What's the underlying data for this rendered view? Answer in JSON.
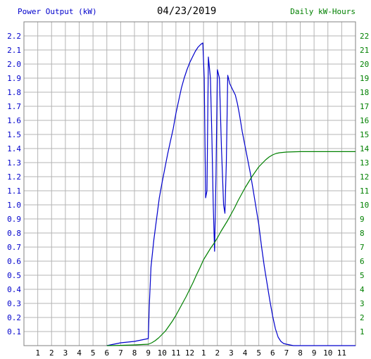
{
  "chart_data": {
    "type": "line",
    "title": "04/23/2019",
    "left_axis_label": "Power Output (kW)",
    "right_axis_label": "Daily kW-Hours",
    "x_tick_labels": [
      "1",
      "2",
      "3",
      "4",
      "5",
      "6",
      "7",
      "8",
      "9",
      "10",
      "11",
      "12",
      "1",
      "2",
      "3",
      "4",
      "5",
      "6",
      "7",
      "8",
      "9",
      "10",
      "11"
    ],
    "xlim": [
      0,
      24
    ],
    "left_ylim": [
      0,
      2.3
    ],
    "left_ticks": [
      "0.1",
      "0.2",
      "0.3",
      "0.4",
      "0.5",
      "0.6",
      "0.7",
      "0.8",
      "0.9",
      "1.0",
      "1.1",
      "1.2",
      "1.3",
      "1.4",
      "1.5",
      "1.6",
      "1.7",
      "1.8",
      "1.9",
      "2.0",
      "2.1",
      "2.2"
    ],
    "right_ylim": [
      0,
      23
    ],
    "right_ticks": [
      "1",
      "2",
      "3",
      "4",
      "5",
      "6",
      "7",
      "8",
      "9",
      "10",
      "11",
      "12",
      "13",
      "14",
      "15",
      "16",
      "17",
      "18",
      "19",
      "20",
      "21",
      "22"
    ],
    "grid": true,
    "colors": {
      "power": "#0000cc",
      "energy": "#008000",
      "grid": "#b4b4b4"
    },
    "series": [
      {
        "axis": "left",
        "points": [
          [
            6.0,
            0
          ],
          [
            6.5,
            0.01
          ],
          [
            7.0,
            0.02
          ],
          [
            7.5,
            0.025
          ],
          [
            8.0,
            0.03
          ],
          [
            8.5,
            0.04
          ],
          [
            9.0,
            0.05
          ],
          [
            9.08,
            0.3
          ],
          [
            9.2,
            0.56
          ],
          [
            9.4,
            0.75
          ],
          [
            9.6,
            0.9
          ],
          [
            9.8,
            1.05
          ],
          [
            10.0,
            1.16
          ],
          [
            10.2,
            1.26
          ],
          [
            10.4,
            1.36
          ],
          [
            10.6,
            1.45
          ],
          [
            10.8,
            1.54
          ],
          [
            11.0,
            1.65
          ],
          [
            11.2,
            1.74
          ],
          [
            11.4,
            1.83
          ],
          [
            11.6,
            1.9
          ],
          [
            11.8,
            1.96
          ],
          [
            12.0,
            2.01
          ],
          [
            12.2,
            2.05
          ],
          [
            12.4,
            2.09
          ],
          [
            12.6,
            2.12
          ],
          [
            12.8,
            2.14
          ],
          [
            12.95,
            2.15
          ],
          [
            13.05,
            1.9
          ],
          [
            13.15,
            1.05
          ],
          [
            13.25,
            1.1
          ],
          [
            13.35,
            2.05
          ],
          [
            13.5,
            1.9
          ],
          [
            13.6,
            1.5
          ],
          [
            13.7,
            1.0
          ],
          [
            13.8,
            0.67
          ],
          [
            13.9,
            1.2
          ],
          [
            14.0,
            1.96
          ],
          [
            14.15,
            1.9
          ],
          [
            14.3,
            1.4
          ],
          [
            14.45,
            1.0
          ],
          [
            14.55,
            0.94
          ],
          [
            14.65,
            1.3
          ],
          [
            14.75,
            1.92
          ],
          [
            14.9,
            1.86
          ],
          [
            15.1,
            1.82
          ],
          [
            15.3,
            1.78
          ],
          [
            15.45,
            1.72
          ],
          [
            15.6,
            1.64
          ],
          [
            15.8,
            1.52
          ],
          [
            16.0,
            1.42
          ],
          [
            16.2,
            1.32
          ],
          [
            16.4,
            1.22
          ],
          [
            16.6,
            1.1
          ],
          [
            16.8,
            0.98
          ],
          [
            17.0,
            0.86
          ],
          [
            17.2,
            0.7
          ],
          [
            17.4,
            0.56
          ],
          [
            17.6,
            0.44
          ],
          [
            17.8,
            0.32
          ],
          [
            18.0,
            0.21
          ],
          [
            18.2,
            0.12
          ],
          [
            18.4,
            0.06
          ],
          [
            18.6,
            0.03
          ],
          [
            18.8,
            0.015
          ],
          [
            19.0,
            0.01
          ],
          [
            19.5,
            0.0
          ],
          [
            24,
            0.0
          ]
        ]
      },
      {
        "axis": "right",
        "points": [
          [
            6.0,
            0
          ],
          [
            7.0,
            0.02
          ],
          [
            8.0,
            0.05
          ],
          [
            9.0,
            0.1
          ],
          [
            9.25,
            0.2
          ],
          [
            9.5,
            0.35
          ],
          [
            9.75,
            0.55
          ],
          [
            10.0,
            0.8
          ],
          [
            10.25,
            1.05
          ],
          [
            10.5,
            1.4
          ],
          [
            10.75,
            1.75
          ],
          [
            11.0,
            2.15
          ],
          [
            11.25,
            2.6
          ],
          [
            11.5,
            3.05
          ],
          [
            11.75,
            3.5
          ],
          [
            12.0,
            4.0
          ],
          [
            12.25,
            4.5
          ],
          [
            12.5,
            5.05
          ],
          [
            12.75,
            5.55
          ],
          [
            13.0,
            6.1
          ],
          [
            13.25,
            6.5
          ],
          [
            13.5,
            6.9
          ],
          [
            13.75,
            7.25
          ],
          [
            14.0,
            7.65
          ],
          [
            14.25,
            8.1
          ],
          [
            14.5,
            8.5
          ],
          [
            14.75,
            8.9
          ],
          [
            15.0,
            9.35
          ],
          [
            15.25,
            9.8
          ],
          [
            15.5,
            10.3
          ],
          [
            15.75,
            10.75
          ],
          [
            16.0,
            11.2
          ],
          [
            16.25,
            11.6
          ],
          [
            16.5,
            12.0
          ],
          [
            16.75,
            12.35
          ],
          [
            17.0,
            12.7
          ],
          [
            17.25,
            12.95
          ],
          [
            17.5,
            13.2
          ],
          [
            17.75,
            13.4
          ],
          [
            18.0,
            13.55
          ],
          [
            18.25,
            13.65
          ],
          [
            18.5,
            13.7
          ],
          [
            19.0,
            13.75
          ],
          [
            20.0,
            13.78
          ],
          [
            24,
            13.78
          ]
        ]
      }
    ]
  }
}
